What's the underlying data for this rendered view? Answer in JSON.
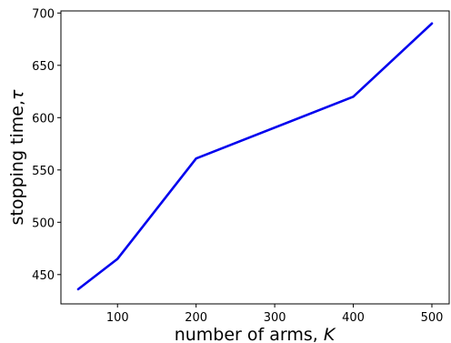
{
  "chart_data": {
    "type": "line",
    "title": "",
    "xlabel_text": "number of arms, ",
    "xlabel_symbol": "K",
    "ylabel_text": "stopping time,",
    "ylabel_symbol": "τ",
    "xlim": [
      28,
      522
    ],
    "ylim": [
      422,
      702
    ],
    "xticks": [
      100,
      200,
      300,
      400,
      500
    ],
    "yticks": [
      450,
      500,
      550,
      600,
      650,
      700
    ],
    "grid": false,
    "series": [
      {
        "color": "#0000ee",
        "x": [
          50,
          100,
          200,
          400,
          500
        ],
        "y": [
          436,
          465,
          561,
          620,
          690
        ]
      }
    ]
  }
}
